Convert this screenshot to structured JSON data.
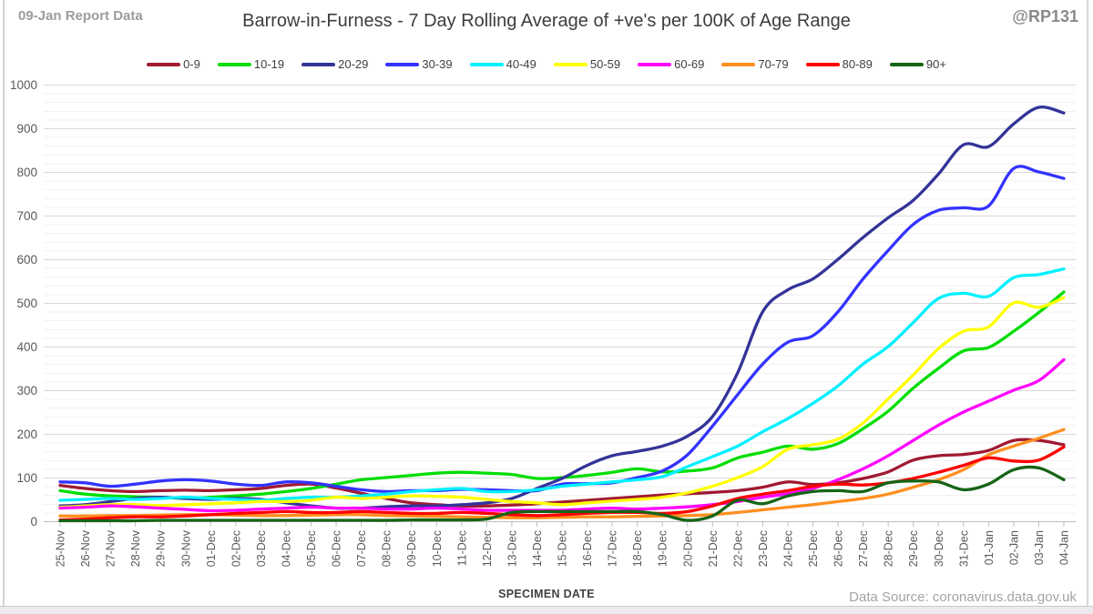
{
  "page": {
    "report_label": "09-Jan Report Data",
    "handle": "@RP131",
    "data_source": "Data Source: coronavirus.data.gov.uk"
  },
  "chart_data": {
    "type": "line",
    "title": "Barrow-in-Furness - 7 Day Rolling Average of +ve's per 100K of Age Range",
    "xlabel": "SPECIMEN DATE",
    "ylabel": "",
    "ylim": [
      0,
      1000
    ],
    "y_major_step": 100,
    "y_minor_step": 20,
    "grid": true,
    "legend_position": "top",
    "categories": [
      "25-Nov",
      "26-Nov",
      "27-Nov",
      "28-Nov",
      "29-Nov",
      "30-Nov",
      "01-Dec",
      "02-Dec",
      "03-Dec",
      "04-Dec",
      "05-Dec",
      "06-Dec",
      "07-Dec",
      "08-Dec",
      "09-Dec",
      "10-Dec",
      "11-Dec",
      "12-Dec",
      "13-Dec",
      "14-Dec",
      "15-Dec",
      "16-Dec",
      "17-Dec",
      "18-Dec",
      "19-Dec",
      "20-Dec",
      "21-Dec",
      "22-Dec",
      "23-Dec",
      "24-Dec",
      "25-Dec",
      "26-Dec",
      "27-Dec",
      "28-Dec",
      "29-Dec",
      "30-Dec",
      "31-Dec",
      "01-Jan",
      "02-Jan",
      "03-Jan",
      "04-Jan"
    ],
    "series": [
      {
        "name": "0-9",
        "color": "#A01A32",
        "values": [
          82,
          75,
          70,
          68,
          70,
          71,
          70,
          72,
          75,
          82,
          85,
          76,
          64,
          52,
          42,
          38,
          35,
          35,
          37,
          40,
          44,
          48,
          52,
          56,
          60,
          63,
          66,
          70,
          78,
          90,
          84,
          88,
          98,
          113,
          140,
          150,
          153,
          162,
          185,
          185,
          175
        ]
      },
      {
        "name": "10-19",
        "color": "#00DD00",
        "values": [
          70,
          62,
          58,
          56,
          55,
          52,
          55,
          58,
          62,
          68,
          75,
          85,
          95,
          100,
          105,
          110,
          112,
          110,
          107,
          98,
          100,
          105,
          112,
          120,
          113,
          115,
          122,
          145,
          158,
          172,
          165,
          178,
          212,
          252,
          305,
          350,
          390,
          398,
          435,
          478,
          525
        ]
      },
      {
        "name": "20-29",
        "color": "#333399",
        "values": [
          35,
          38,
          45,
          52,
          55,
          52,
          50,
          52,
          50,
          42,
          35,
          30,
          30,
          33,
          35,
          35,
          38,
          42,
          52,
          75,
          98,
          128,
          150,
          160,
          172,
          195,
          240,
          340,
          480,
          530,
          555,
          600,
          650,
          695,
          735,
          795,
          862,
          858,
          910,
          948,
          935
        ]
      },
      {
        "name": "30-39",
        "color": "#3333FF",
        "values": [
          90,
          88,
          80,
          85,
          92,
          95,
          92,
          85,
          82,
          90,
          88,
          80,
          72,
          68,
          70,
          70,
          73,
          72,
          70,
          70,
          85,
          86,
          88,
          100,
          115,
          152,
          218,
          290,
          360,
          410,
          425,
          480,
          555,
          620,
          680,
          712,
          718,
          722,
          808,
          800,
          785
        ]
      },
      {
        "name": "40-49",
        "color": "#00F0FF",
        "values": [
          48,
          50,
          52,
          50,
          52,
          55,
          52,
          50,
          48,
          52,
          55,
          55,
          58,
          62,
          68,
          72,
          75,
          68,
          68,
          72,
          80,
          85,
          90,
          95,
          102,
          125,
          148,
          172,
          205,
          235,
          270,
          310,
          360,
          400,
          455,
          510,
          522,
          515,
          558,
          565,
          578
        ]
      },
      {
        "name": "50-59",
        "color": "#FFFF00",
        "values": [
          32,
          35,
          38,
          38,
          36,
          38,
          40,
          42,
          45,
          45,
          48,
          55,
          52,
          55,
          58,
          57,
          55,
          50,
          45,
          42,
          38,
          42,
          46,
          50,
          55,
          65,
          80,
          100,
          125,
          165,
          175,
          188,
          225,
          280,
          335,
          395,
          435,
          445,
          500,
          490,
          512
        ]
      },
      {
        "name": "60-69",
        "color": "#FF00FF",
        "values": [
          30,
          32,
          35,
          33,
          30,
          27,
          24,
          25,
          28,
          30,
          32,
          30,
          30,
          28,
          28,
          30,
          28,
          25,
          25,
          25,
          25,
          28,
          30,
          28,
          30,
          33,
          38,
          45,
          55,
          63,
          75,
          95,
          120,
          150,
          185,
          220,
          250,
          275,
          300,
          322,
          370
        ]
      },
      {
        "name": "70-79",
        "color": "#FF8F1F",
        "values": [
          12,
          12,
          13,
          13,
          14,
          15,
          15,
          14,
          13,
          13,
          14,
          15,
          15,
          13,
          12,
          11,
          10,
          9,
          8,
          8,
          9,
          10,
          10,
          11,
          12,
          13,
          15,
          20,
          26,
          32,
          38,
          45,
          52,
          62,
          78,
          95,
          118,
          152,
          172,
          190,
          210
        ]
      },
      {
        "name": "80-89",
        "color": "#FF0000",
        "values": [
          3,
          5,
          8,
          10,
          10,
          12,
          15,
          18,
          20,
          22,
          20,
          20,
          22,
          20,
          18,
          18,
          20,
          18,
          15,
          13,
          15,
          18,
          20,
          20,
          18,
          22,
          35,
          52,
          62,
          70,
          80,
          85,
          83,
          88,
          98,
          112,
          128,
          145,
          138,
          140,
          170
        ]
      },
      {
        "name": "90+",
        "color": "#166416",
        "values": [
          1,
          1,
          1,
          1,
          2,
          2,
          2,
          2,
          2,
          2,
          2,
          2,
          2,
          2,
          3,
          3,
          3,
          5,
          20,
          22,
          22,
          22,
          22,
          22,
          15,
          2,
          12,
          48,
          40,
          58,
          68,
          70,
          68,
          88,
          92,
          90,
          72,
          85,
          118,
          122,
          95
        ]
      }
    ]
  }
}
